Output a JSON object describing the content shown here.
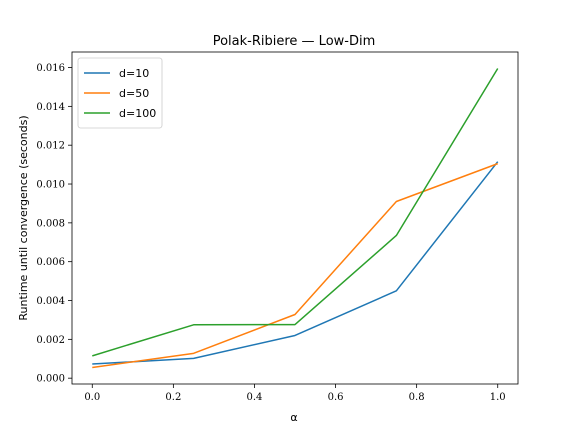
{
  "chart_data": {
    "type": "line",
    "title": "Polak-Ribiere — Low-Dim",
    "xlabel": "α",
    "ylabel": "Runtime until convergence (seconds)",
    "x": [
      0.0,
      0.25,
      0.5,
      0.75,
      1.0
    ],
    "xlim": [
      -0.05,
      1.05
    ],
    "ylim": [
      -0.0003,
      0.0168
    ],
    "xticks": [
      0.0,
      0.2,
      0.4,
      0.6,
      0.8,
      1.0
    ],
    "xtick_labels": [
      "0.0",
      "0.2",
      "0.4",
      "0.6",
      "0.8",
      "1.0"
    ],
    "yticks": [
      0.0,
      0.002,
      0.004,
      0.006,
      0.008,
      0.01,
      0.012,
      0.014,
      0.016
    ],
    "ytick_labels": [
      "0.000",
      "0.002",
      "0.004",
      "0.006",
      "0.008",
      "0.010",
      "0.012",
      "0.014",
      "0.016"
    ],
    "grid": false,
    "legend_position": "top-left",
    "series": [
      {
        "name": "d=10",
        "color": "#1f77b4",
        "values": [
          0.00073,
          0.00102,
          0.0022,
          0.0045,
          0.01115
        ]
      },
      {
        "name": "d=50",
        "color": "#ff7f0e",
        "values": [
          0.00055,
          0.00128,
          0.00328,
          0.0091,
          0.01105
        ]
      },
      {
        "name": "d=100",
        "color": "#2ca02c",
        "values": [
          0.00115,
          0.00275,
          0.00276,
          0.00735,
          0.01595
        ]
      }
    ]
  }
}
